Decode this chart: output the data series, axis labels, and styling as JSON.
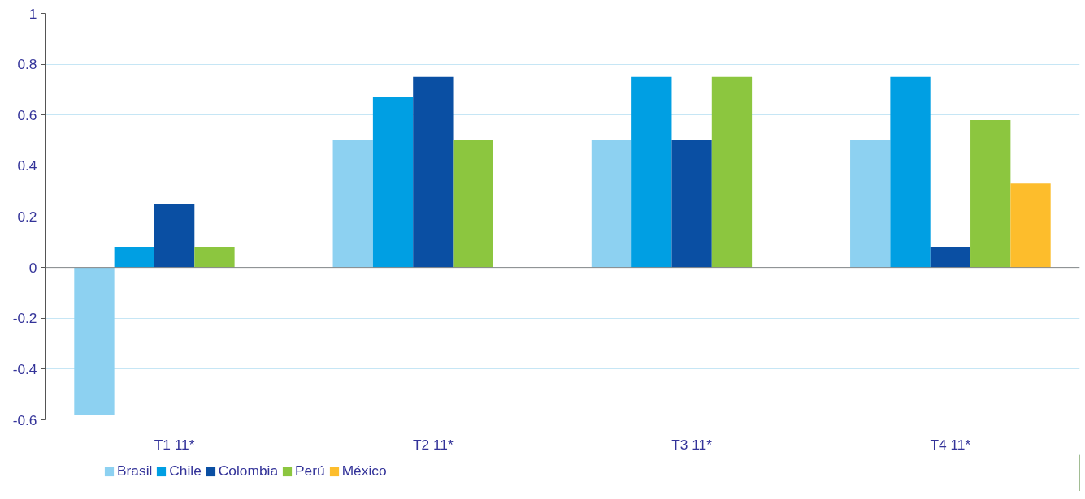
{
  "chart_data": {
    "type": "bar",
    "categories": [
      "T1 11*",
      "T2 11*",
      "T3 11*",
      "T4 11*"
    ],
    "series": [
      {
        "name": "Brasil",
        "color": "#8dd1f1",
        "values": [
          -0.58,
          0.5,
          0.5,
          0.5
        ]
      },
      {
        "name": "Chile",
        "color": "#009fe3",
        "values": [
          0.08,
          0.67,
          0.75,
          0.75
        ]
      },
      {
        "name": "Colombia",
        "color": "#0a4fa3",
        "values": [
          0.25,
          0.75,
          0.5,
          0.08
        ]
      },
      {
        "name": "Perú",
        "color": "#8cc63f",
        "values": [
          0.08,
          0.5,
          0.75,
          0.58
        ]
      },
      {
        "name": "México",
        "color": "#fdbd2c",
        "values": [
          null,
          null,
          null,
          0.33
        ]
      }
    ],
    "ylim": [
      -0.6,
      1
    ],
    "yticks": [
      -0.6,
      -0.4,
      -0.2,
      0,
      0.2,
      0.4,
      0.6,
      0.8,
      1
    ],
    "grid": "y",
    "legend": "bottom left"
  }
}
